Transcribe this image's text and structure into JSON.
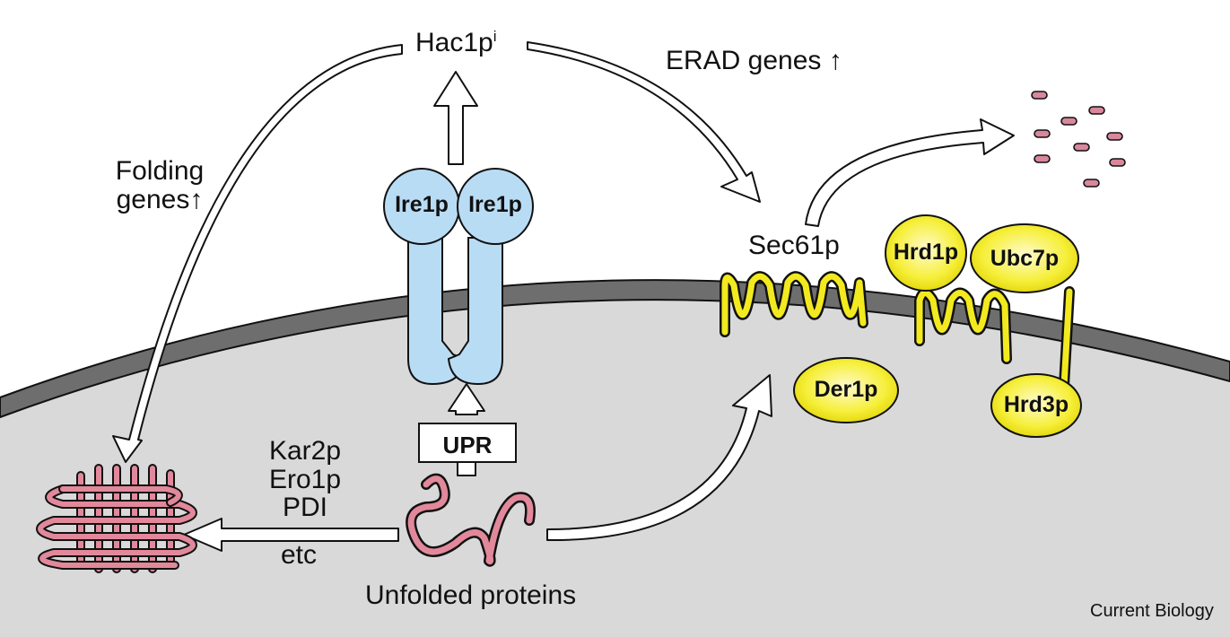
{
  "labels": {
    "hac1p": "Hac1p",
    "hac1p_sup": "i",
    "erad_genes": "ERAD genes",
    "folding": "Folding",
    "genes": "genes",
    "sec61p": "Sec61p",
    "chaperone_1": "Kar2p",
    "chaperone_2": "Ero1p",
    "chaperone_3": "PDI",
    "etc": "etc",
    "unfolded_proteins": "Unfolded proteins",
    "upr": "UPR",
    "credit": "Current Biology",
    "up_arrow": "↑"
  },
  "proteins": {
    "ire1p_left": "Ire1p",
    "ire1p_right": "Ire1p",
    "hrd1p": "Hrd1p",
    "ubc7p": "Ubc7p",
    "der1p": "Der1p",
    "hrd3p": "Hrd3p"
  },
  "colors": {
    "membrane": "#6e6e6e",
    "lumen": "#d9d9d9",
    "ire1": "#b9dcf5",
    "yellow": "#f2ea1e",
    "pink": "#e2889b"
  }
}
